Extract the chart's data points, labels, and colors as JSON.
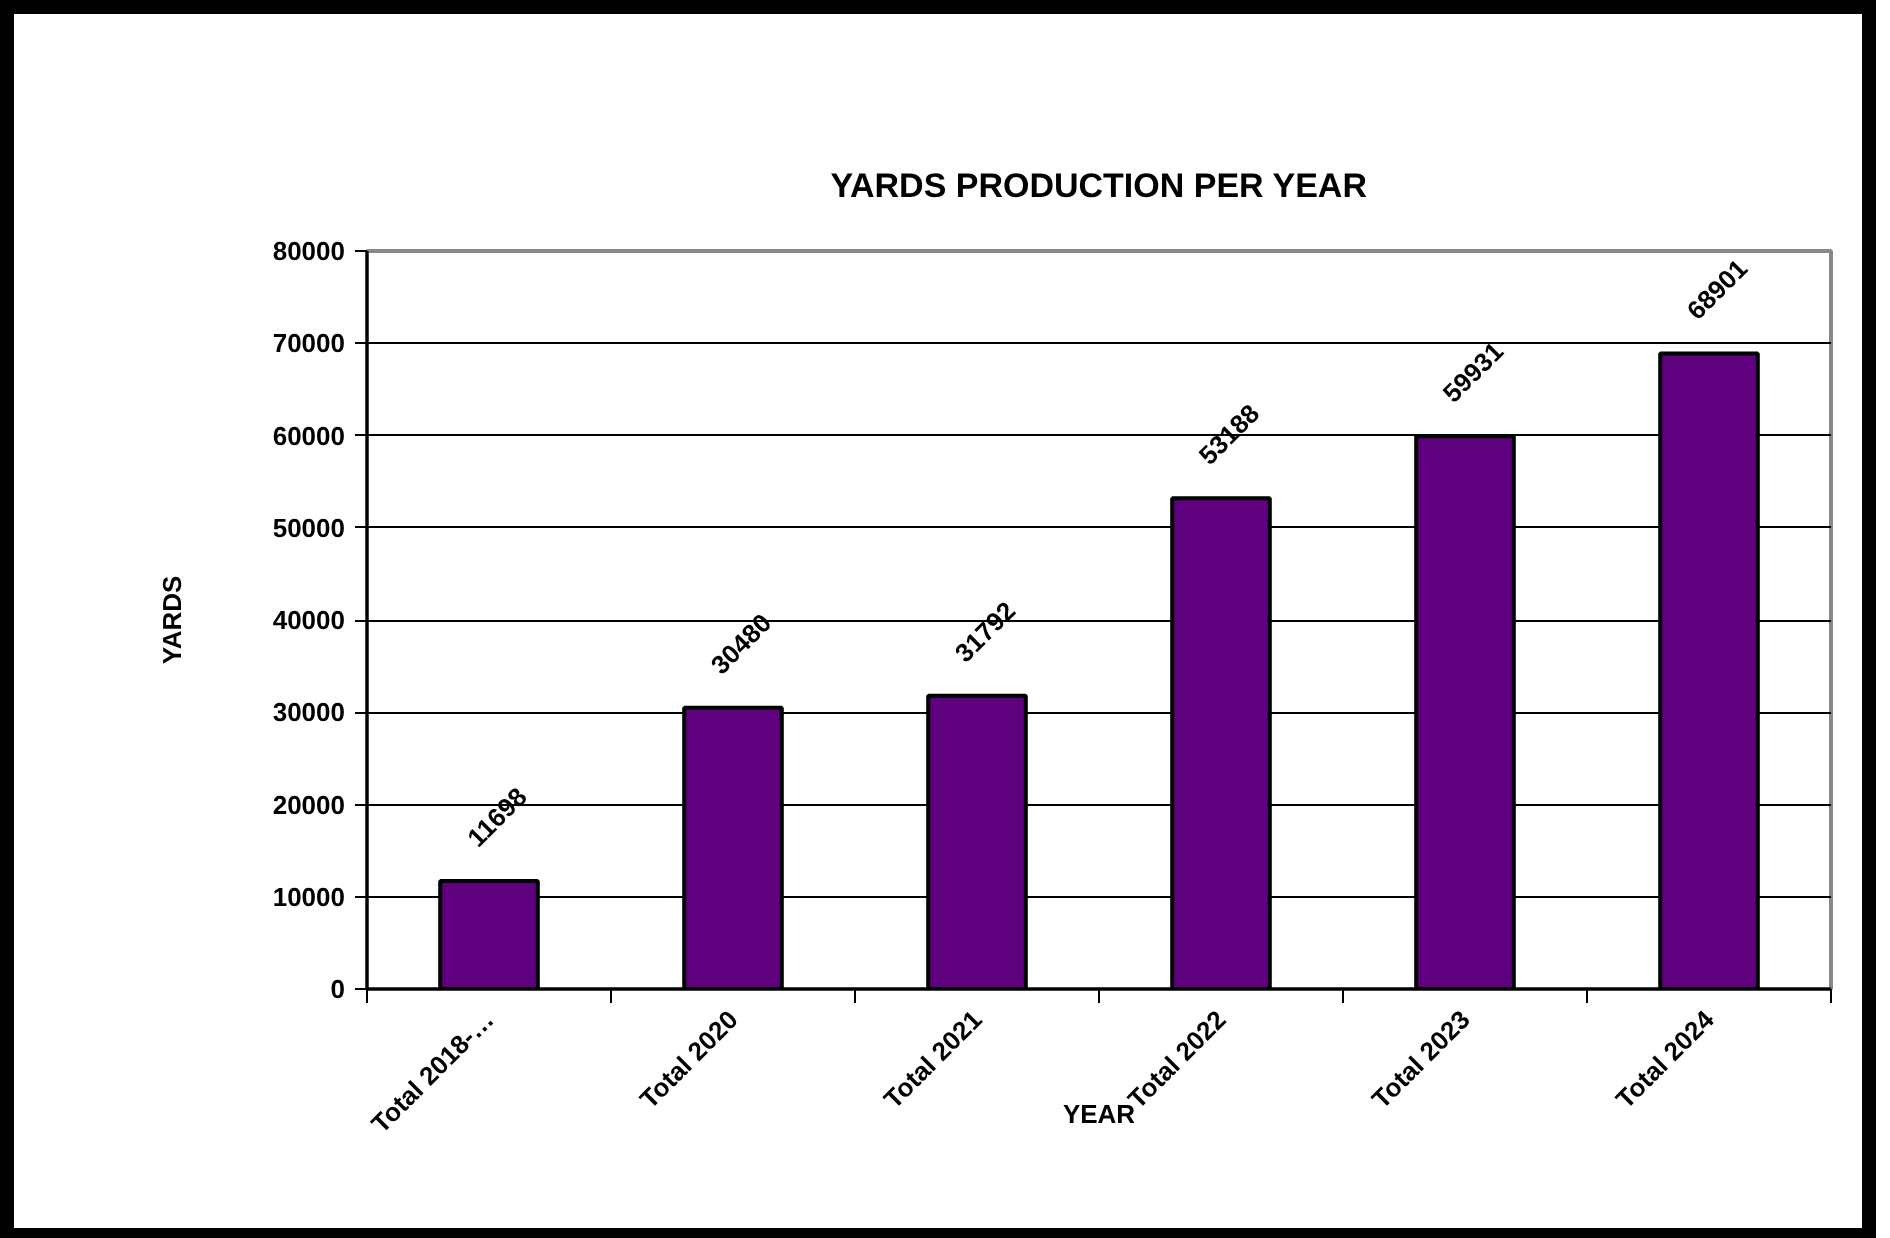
{
  "chart_data": {
    "type": "bar",
    "title": "YARDS PRODUCTION PER YEAR",
    "xlabel": "YEAR",
    "ylabel": "YARDS",
    "categories": [
      "Total 2018-…",
      "Total 2020",
      "Total 2021",
      "Total 2022",
      "Total 2023",
      "Total 2024"
    ],
    "values": [
      11698,
      30480,
      31792,
      53188,
      59931,
      68901
    ],
    "color": "#5f007f",
    "ylim": [
      0,
      80000
    ],
    "yticks": [
      0,
      10000,
      20000,
      30000,
      40000,
      50000,
      60000,
      70000,
      80000
    ],
    "grid": "y",
    "data_labels": true
  }
}
